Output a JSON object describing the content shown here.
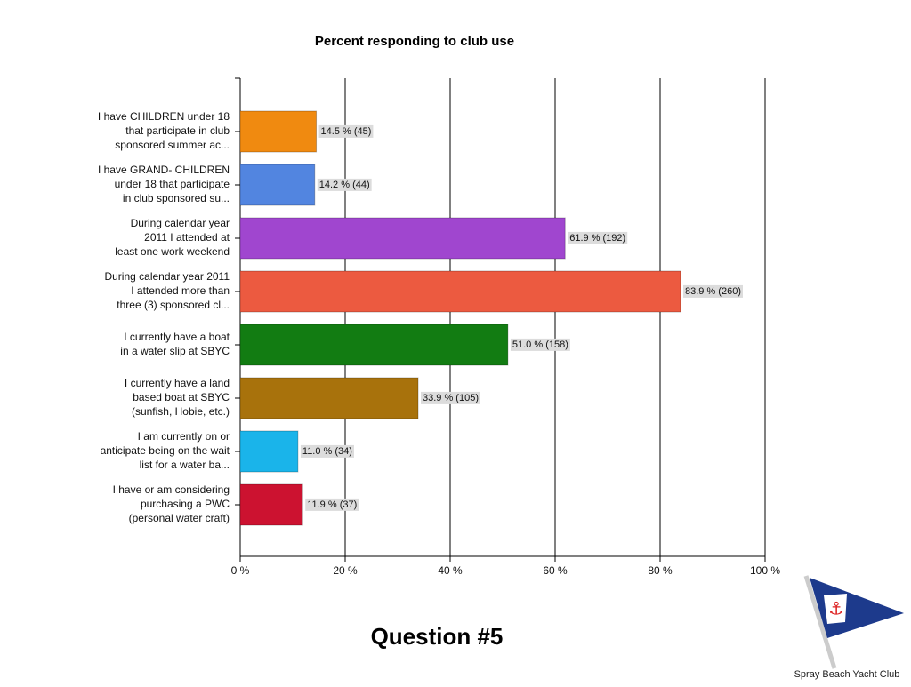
{
  "chart_data": {
    "type": "bar",
    "orientation": "horizontal",
    "title": "Percent responding to club use",
    "categories": [
      "I have CHILDREN under 18\nthat participate in club\nsponsored summer ac...",
      "I have GRAND- CHILDREN\nunder 18 that participate\nin club sponsored su...",
      "During calendar year\n2011 I attended at\nleast one work weekend",
      "During calendar year 2011\nI attended more than\nthree (3) sponsored cl...",
      "I currently have a boat\nin a water slip at SBYC",
      "I currently have a land\nbased boat at SBYC\n(sunfish, Hobie, etc.)",
      "I am currently on or\nanticipate being on the wait\nlist for a water ba...",
      "I have or am considering\npurchasing a PWC\n(personal water craft)"
    ],
    "values": [
      14.5,
      14.2,
      61.9,
      83.9,
      51.0,
      33.9,
      11.0,
      11.9
    ],
    "value_labels": [
      "14.5 % (45)",
      "14.2 % (44)",
      "61.9 % (192)",
      "83.9 % (260)",
      "51.0 % (158)",
      "33.9 % (105)",
      "11.0 % (34)",
      "11.9 % (37)"
    ],
    "colors": [
      "#f08a10",
      "#5285e0",
      "#a046cf",
      "#ec5a40",
      "#127c12",
      "#a8720c",
      "#1ab4ea",
      "#cc1230"
    ],
    "xlim": [
      0,
      100
    ],
    "xticks": [
      {
        "value": 0,
        "label": "0 %"
      },
      {
        "value": 20,
        "label": "20 %"
      },
      {
        "value": 40,
        "label": "40 %"
      },
      {
        "value": 60,
        "label": "60 %"
      },
      {
        "value": 80,
        "label": "80 %"
      },
      {
        "value": 100,
        "label": "100 %"
      }
    ],
    "grid": true
  },
  "slide": {
    "heading": "Question #5",
    "logo_text": "Spray Beach Yacht Club"
  }
}
